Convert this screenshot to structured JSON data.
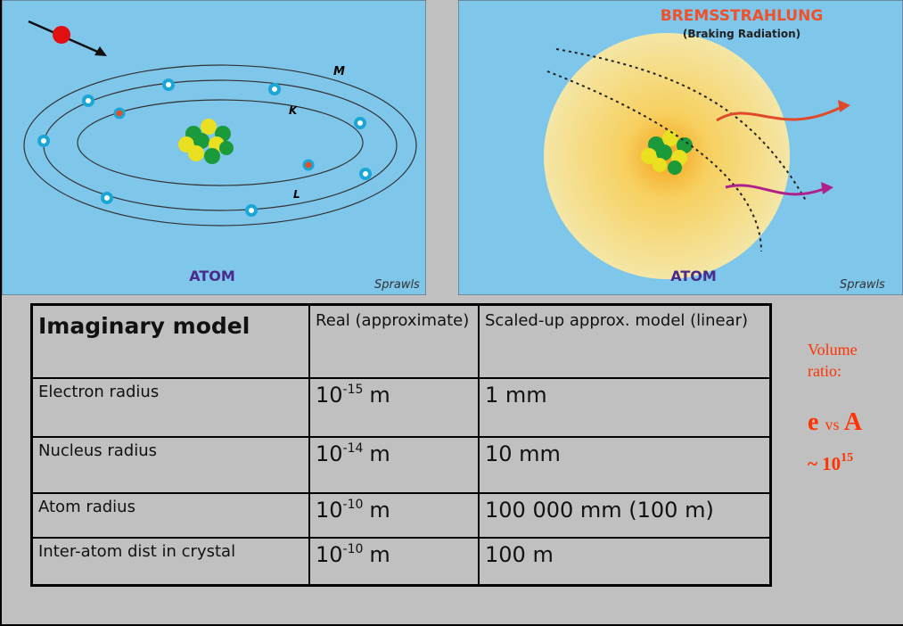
{
  "panels": [
    {
      "orbit_labels": [
        "M",
        "K",
        "L"
      ],
      "caption": "ATOM",
      "signature": "Sprawls"
    },
    {
      "title": "BREMSSTRAHLUNG",
      "subtitle": "(Braking Radiation)",
      "caption": "ATOM",
      "signature": "Sprawls"
    }
  ],
  "table": {
    "header": [
      "Imaginary model",
      "Real (approximate)",
      "Scaled-up approx. model (linear)"
    ],
    "rows": [
      {
        "label": "Electron radius",
        "real": {
          "base": "10",
          "exponent": "-15",
          "unit": "m"
        },
        "scaled": "1 mm"
      },
      {
        "label": "Nucleus radius",
        "real": {
          "base": "10",
          "exponent": "-14",
          "unit": "m"
        },
        "scaled": "10 mm"
      },
      {
        "label": "Atom radius",
        "real": {
          "base": "10",
          "exponent": "-10",
          "unit": "m"
        },
        "scaled": "100 000 mm (100 m)"
      },
      {
        "label": "Inter-atom dist in crystal",
        "real": {
          "base": "10",
          "exponent": "-10",
          "unit": "m"
        },
        "scaled": "100 m"
      }
    ]
  },
  "side_note": {
    "label": "Volume ratio:",
    "comparison": {
      "left": "e",
      "middle": "vs",
      "right": "A"
    },
    "magnitude": {
      "prefix": "~",
      "base": "10",
      "exponent": "15"
    }
  }
}
